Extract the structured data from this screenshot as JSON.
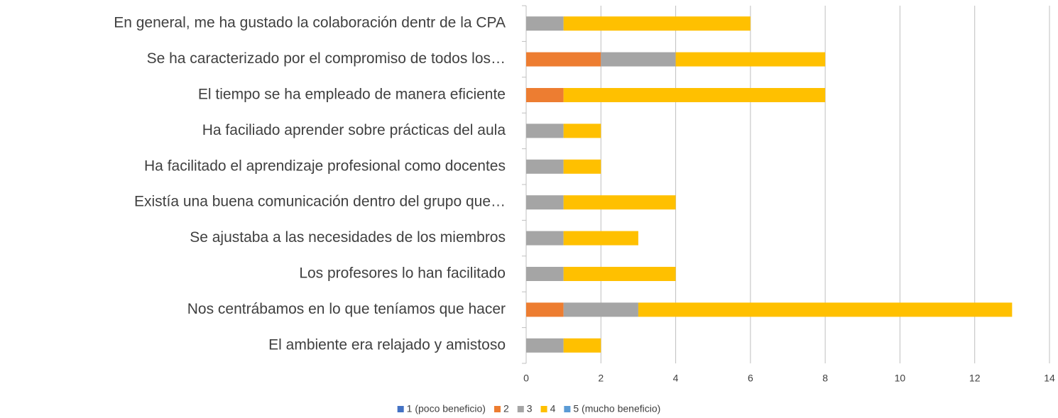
{
  "chart_data": {
    "type": "stacked_barh",
    "categories": [
      "En general, me ha gustado la colaboración dentr de la CPA",
      "Se ha caracterizado por el compromiso de todos los…",
      "El tiempo se ha empleado de manera eficiente",
      "Ha faciliado aprender sobre prácticas del aula",
      "Ha facilitado el aprendizaje profesional como docentes",
      "Existía una buena comunicación dentro del grupo que…",
      "Se ajustaba a las necesidades de los miembros",
      "Los profesores lo han facilitado",
      "Nos centrábamos en lo que teníamos que hacer",
      "El ambiente era relajado y amistoso"
    ],
    "series": [
      {
        "name": "1 (poco beneficio)",
        "color": "#4472c4",
        "values": [
          0,
          0,
          0,
          0,
          0,
          0,
          0,
          0,
          0,
          0
        ]
      },
      {
        "name": "2",
        "color": "#ed7d31",
        "values": [
          0,
          2,
          1,
          0,
          0,
          0,
          0,
          0,
          1,
          0
        ]
      },
      {
        "name": "3",
        "color": "#a5a5a5",
        "values": [
          1,
          2,
          0,
          1,
          1,
          1,
          1,
          1,
          2,
          1
        ]
      },
      {
        "name": "4",
        "color": "#ffc000",
        "values": [
          5,
          4,
          7,
          1,
          1,
          3,
          2,
          3,
          10,
          1
        ]
      },
      {
        "name": "5 (mucho beneficio)",
        "color": "#5b9bd5",
        "values": [
          0,
          0,
          0,
          0,
          0,
          0,
          0,
          0,
          0,
          0
        ]
      }
    ],
    "xlim": [
      0,
      14
    ],
    "xticks": [
      0,
      2,
      4,
      6,
      8,
      10,
      12,
      14
    ],
    "grid": true,
    "legend": "bottom"
  }
}
